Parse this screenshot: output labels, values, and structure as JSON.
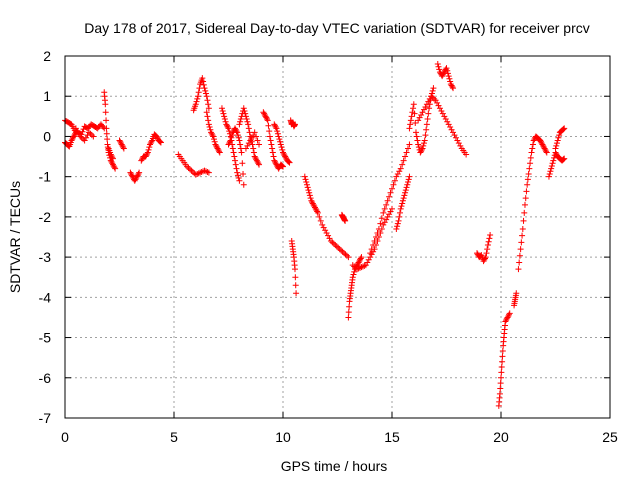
{
  "chart_data": {
    "type": "scatter",
    "title": "Day 178 of 2017, Sidereal Day-to-day VTEC variation (SDTVAR) for receiver prcv",
    "xlabel": "GPS time / hours",
    "ylabel": "SDTVAR / TECUs",
    "xlim": [
      0,
      25
    ],
    "ylim": [
      -7,
      2
    ],
    "xticks": [
      "0",
      "5",
      "10",
      "15",
      "20",
      "25"
    ],
    "yticks": [
      "2",
      "1",
      "0",
      "-1",
      "-2",
      "-3",
      "-4",
      "-5",
      "-6",
      "-7"
    ],
    "grid": true,
    "marker": "+",
    "marker_color": "#ff0000",
    "segments": [
      {
        "x": [
          0.0,
          0.15,
          0.3,
          0.45,
          0.6,
          0.75,
          0.9,
          1.05,
          1.2,
          1.35,
          1.5,
          1.65,
          1.8
        ],
        "y": [
          0.4,
          0.35,
          0.3,
          0.15,
          0.1,
          0.05,
          0.25,
          0.2,
          0.3,
          0.25,
          0.2,
          0.3,
          0.2
        ]
      },
      {
        "x": [
          0.0,
          0.1,
          0.2,
          0.3,
          0.4,
          0.5
        ],
        "y": [
          -0.15,
          -0.2,
          -0.25,
          -0.1,
          0.0,
          0.1
        ]
      },
      {
        "x": [
          0.5,
          0.7,
          0.9,
          1.1,
          1.3
        ],
        "y": [
          0.2,
          0.0,
          -0.1,
          0.1,
          0.0
        ]
      },
      {
        "x": [
          1.8,
          1.85,
          1.9,
          1.95,
          2.0,
          2.1,
          2.2,
          2.3
        ],
        "y": [
          1.1,
          0.8,
          0.2,
          -0.2,
          -0.4,
          -0.6,
          -0.7,
          -0.8
        ]
      },
      {
        "x": [
          2.0,
          2.1,
          2.2
        ],
        "y": [
          -0.3,
          -0.45,
          -0.55
        ]
      },
      {
        "x": [
          2.5,
          2.6,
          2.7
        ],
        "y": [
          -0.1,
          -0.2,
          -0.3
        ]
      },
      {
        "x": [
          3.0,
          3.1,
          3.2,
          3.3,
          3.4
        ],
        "y": [
          -0.9,
          -1.0,
          -1.1,
          -1.0,
          -0.9
        ]
      },
      {
        "x": [
          3.5,
          3.6,
          3.7,
          3.8,
          3.9,
          4.0,
          4.1,
          4.2,
          4.3,
          4.4
        ],
        "y": [
          -0.6,
          -0.5,
          -0.5,
          -0.4,
          -0.2,
          -0.1,
          0.05,
          0.0,
          -0.1,
          -0.15
        ]
      },
      {
        "x": [
          5.2,
          5.4,
          5.6,
          5.8,
          6.0,
          6.2,
          6.4,
          6.6
        ],
        "y": [
          -0.45,
          -0.6,
          -0.75,
          -0.85,
          -0.95,
          -0.9,
          -0.85,
          -0.9
        ]
      },
      {
        "x": [
          5.9,
          6.0,
          6.1,
          6.2,
          6.3,
          6.4,
          6.5,
          6.6
        ],
        "y": [
          0.65,
          0.8,
          1.0,
          1.3,
          1.45,
          1.2,
          1.0,
          0.7
        ]
      },
      {
        "x": [
          6.5,
          6.6,
          6.7,
          6.8,
          6.9,
          7.0,
          7.1
        ],
        "y": [
          0.6,
          0.3,
          0.1,
          0.0,
          -0.2,
          -0.3,
          -0.4
        ]
      },
      {
        "x": [
          7.2,
          7.3,
          7.4,
          7.5,
          7.6,
          7.7,
          7.8,
          7.9,
          8.0
        ],
        "y": [
          0.7,
          0.5,
          0.3,
          0.2,
          0.0,
          -0.3,
          -0.6,
          -0.9,
          -1.1
        ]
      },
      {
        "x": [
          7.5,
          7.6,
          7.7,
          7.8,
          7.9,
          8.0,
          8.1,
          8.2
        ],
        "y": [
          -0.2,
          -0.1,
          0.1,
          0.2,
          0.1,
          -0.1,
          -0.4,
          -1.2
        ]
      },
      {
        "x": [
          8.0,
          8.1,
          8.2,
          8.3,
          8.4,
          8.5,
          8.6,
          8.7,
          8.8,
          8.9
        ],
        "y": [
          0.3,
          0.5,
          0.7,
          0.5,
          0.3,
          0.0,
          -0.2,
          -0.5,
          -0.6,
          -0.7
        ]
      },
      {
        "x": [
          8.3,
          8.5,
          8.7,
          8.9
        ],
        "y": [
          -0.3,
          -0.1,
          0.1,
          -0.2
        ]
      },
      {
        "x": [
          9.1,
          9.2,
          9.3,
          9.4,
          9.5,
          9.6,
          9.7,
          9.8,
          9.9,
          10.0
        ],
        "y": [
          0.6,
          0.5,
          0.4,
          0.0,
          -0.3,
          -0.6,
          -0.7,
          -0.8,
          -0.7,
          -0.75
        ]
      },
      {
        "x": [
          9.6,
          9.7,
          9.8,
          9.9,
          10.0,
          10.1,
          10.2,
          10.3
        ],
        "y": [
          0.3,
          0.2,
          0.0,
          -0.2,
          -0.4,
          -0.5,
          -0.6,
          -0.65
        ]
      },
      {
        "x": [
          10.35,
          10.4,
          10.45,
          10.5,
          10.55
        ],
        "y": [
          0.4,
          0.3,
          0.35,
          0.25,
          0.3
        ]
      },
      {
        "x": [
          10.4,
          10.45,
          10.5,
          10.55,
          10.6
        ],
        "y": [
          -2.6,
          -2.8,
          -3.0,
          -3.3,
          -3.9
        ]
      },
      {
        "x": [
          11.0,
          11.1,
          11.2,
          11.3,
          11.4,
          11.5,
          11.6,
          11.8,
          12.0,
          12.2,
          12.4,
          12.6,
          12.8,
          13.0
        ],
        "y": [
          -1.0,
          -1.2,
          -1.4,
          -1.6,
          -1.7,
          -1.8,
          -1.9,
          -2.2,
          -2.4,
          -2.6,
          -2.7,
          -2.8,
          -2.9,
          -3.0
        ]
      },
      {
        "x": [
          12.7,
          12.75,
          12.8,
          12.85
        ],
        "y": [
          -1.95,
          -2.0,
          -2.05,
          -2.1
        ]
      },
      {
        "x": [
          13.0,
          13.05,
          13.1,
          13.15,
          13.2,
          13.3,
          13.4,
          13.5,
          13.6
        ],
        "y": [
          -4.5,
          -4.1,
          -3.9,
          -3.7,
          -3.5,
          -3.3,
          -3.2,
          -3.1,
          -3.0
        ]
      },
      {
        "x": [
          13.2,
          13.4,
          13.6,
          13.8,
          14.0,
          14.2,
          14.4,
          14.6,
          14.8,
          15.0
        ],
        "y": [
          -3.2,
          -3.3,
          -3.25,
          -3.2,
          -3.0,
          -2.8,
          -2.5,
          -2.2,
          -2.0,
          -1.8
        ]
      },
      {
        "x": [
          14.0,
          14.2,
          14.4,
          14.6,
          14.8,
          15.0,
          15.2,
          15.4,
          15.6,
          15.8
        ],
        "y": [
          -2.9,
          -2.6,
          -2.3,
          -1.9,
          -1.6,
          -1.3,
          -1.0,
          -0.8,
          -0.5,
          -0.2
        ]
      },
      {
        "x": [
          15.2,
          15.3,
          15.4,
          15.5,
          15.6,
          15.7,
          15.8
        ],
        "y": [
          -2.3,
          -2.1,
          -1.8,
          -1.6,
          -1.4,
          -1.2,
          -1.0
        ]
      },
      {
        "x": [
          15.8,
          15.9,
          16.0,
          16.1,
          16.2,
          16.3,
          16.4,
          16.5,
          16.6,
          16.7,
          16.8,
          16.9
        ],
        "y": [
          0.2,
          0.5,
          0.8,
          0.1,
          -0.2,
          -0.4,
          -0.3,
          -0.1,
          0.3,
          0.7,
          1.0,
          1.2
        ]
      },
      {
        "x": [
          16.2,
          16.4,
          16.6,
          16.8,
          17.0,
          17.2,
          17.4,
          17.6,
          17.8,
          18.0,
          18.2,
          18.4
        ],
        "y": [
          0.4,
          0.6,
          0.8,
          1.0,
          0.9,
          0.7,
          0.5,
          0.3,
          0.1,
          -0.1,
          -0.3,
          -0.45
        ]
      },
      {
        "x": [
          17.1,
          17.2,
          17.3,
          17.4,
          17.5,
          17.6,
          17.7,
          17.8
        ],
        "y": [
          1.8,
          1.6,
          1.5,
          1.6,
          1.7,
          1.5,
          1.3,
          1.2
        ]
      },
      {
        "x": [
          18.9,
          19.0,
          19.1,
          19.2,
          19.3,
          19.4,
          19.5
        ],
        "y": [
          -2.9,
          -3.0,
          -2.95,
          -3.1,
          -3.0,
          -2.7,
          -2.45
        ]
      },
      {
        "x": [
          19.9,
          19.95,
          20.0,
          20.05,
          20.1,
          20.15,
          20.2,
          20.3,
          20.4
        ],
        "y": [
          -6.7,
          -6.4,
          -6.0,
          -5.6,
          -5.2,
          -4.9,
          -4.6,
          -4.5,
          -4.4
        ]
      },
      {
        "x": [
          20.6,
          20.65,
          20.7
        ],
        "y": [
          -4.2,
          -4.05,
          -3.9
        ]
      },
      {
        "x": [
          20.8,
          20.9,
          21.0,
          21.1,
          21.2,
          21.3,
          21.4,
          21.5,
          21.6,
          21.7,
          21.8,
          21.9,
          22.0,
          22.1
        ],
        "y": [
          -3.3,
          -2.8,
          -2.3,
          -1.7,
          -1.2,
          -0.8,
          -0.4,
          -0.1,
          0.0,
          -0.05,
          -0.1,
          -0.2,
          -0.3,
          -0.4
        ]
      },
      {
        "x": [
          22.2,
          22.3,
          22.4,
          22.5,
          22.6,
          22.7,
          22.8,
          22.9
        ],
        "y": [
          -1.0,
          -0.8,
          -0.6,
          -0.4,
          -0.5,
          -0.55,
          -0.6,
          -0.55
        ]
      },
      {
        "x": [
          22.5,
          22.6,
          22.7,
          22.8,
          22.9
        ],
        "y": [
          -0.3,
          -0.1,
          0.1,
          0.15,
          0.2
        ]
      }
    ]
  }
}
